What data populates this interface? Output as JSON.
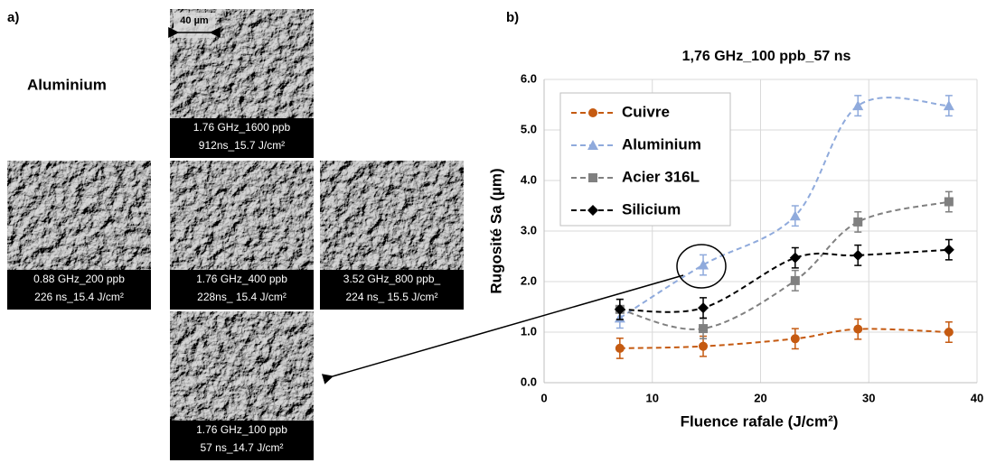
{
  "figure": {
    "label_a": "a)",
    "label_b": "b)",
    "material": "Aluminium",
    "scale_bar": "40 µm",
    "images": [
      {
        "lines": [
          "1.76 GHz_1600 ppb",
          "912ns_15.7 J/cm²"
        ]
      },
      {
        "lines": [
          "0.88 GHz_200 ppb",
          "226 ns_15.4 J/cm²"
        ]
      },
      {
        "lines": [
          "1.76 GHz_400 ppb",
          "228ns_ 15.4 J/cm²"
        ]
      },
      {
        "lines": [
          "3.52 GHz_800 ppb_",
          "224 ns_ 15.5 J/cm²"
        ]
      },
      {
        "lines": [
          "1.76 GHz_100 ppb",
          "57 ns_14.7 J/cm²"
        ]
      }
    ]
  },
  "chart_data": {
    "type": "line",
    "title": "1,76 GHz_100 ppb_57 ns",
    "xlabel": "Fluence rafale (J/cm²)",
    "ylabel": "Rugosité Sa (µm)",
    "x": [
      7,
      14.7,
      23.2,
      29,
      37.4
    ],
    "series": [
      {
        "name": "Cuivre",
        "color": "#c55a11",
        "marker": "circle",
        "values": [
          0.68,
          0.72,
          0.87,
          1.06,
          1.0
        ],
        "errors": [
          0.2,
          0.2,
          0.2,
          0.2,
          0.2
        ]
      },
      {
        "name": "Aluminium",
        "color": "#8faadc",
        "marker": "triangle",
        "values": [
          1.28,
          2.33,
          3.3,
          5.48,
          5.48
        ],
        "errors": [
          0.2,
          0.2,
          0.2,
          0.2,
          0.2
        ]
      },
      {
        "name": "Acier 316L",
        "color": "#808080",
        "marker": "square",
        "values": [
          1.45,
          1.07,
          2.02,
          3.18,
          3.58
        ],
        "errors": [
          0.2,
          0.2,
          0.2,
          0.2,
          0.2
        ]
      },
      {
        "name": "Silicium",
        "color": "#000000",
        "marker": "diamond",
        "values": [
          1.45,
          1.48,
          2.47,
          2.52,
          2.63
        ],
        "errors": [
          0.2,
          0.2,
          0.2,
          0.2,
          0.2
        ]
      }
    ],
    "xlim": [
      0,
      40
    ],
    "xticks": [
      0,
      10,
      20,
      30,
      40
    ],
    "ylim": [
      0,
      6
    ],
    "yticks": [
      {
        "value": 0,
        "label": "0.0"
      },
      {
        "value": 1,
        "label": "1.0"
      },
      {
        "value": 2,
        "label": "2.0"
      },
      {
        "value": 3,
        "label": "3.0"
      },
      {
        "value": 4,
        "label": "4.0"
      },
      {
        "value": 5,
        "label": "5.0"
      },
      {
        "value": 6,
        "label": "6.0"
      }
    ],
    "grid": true
  }
}
